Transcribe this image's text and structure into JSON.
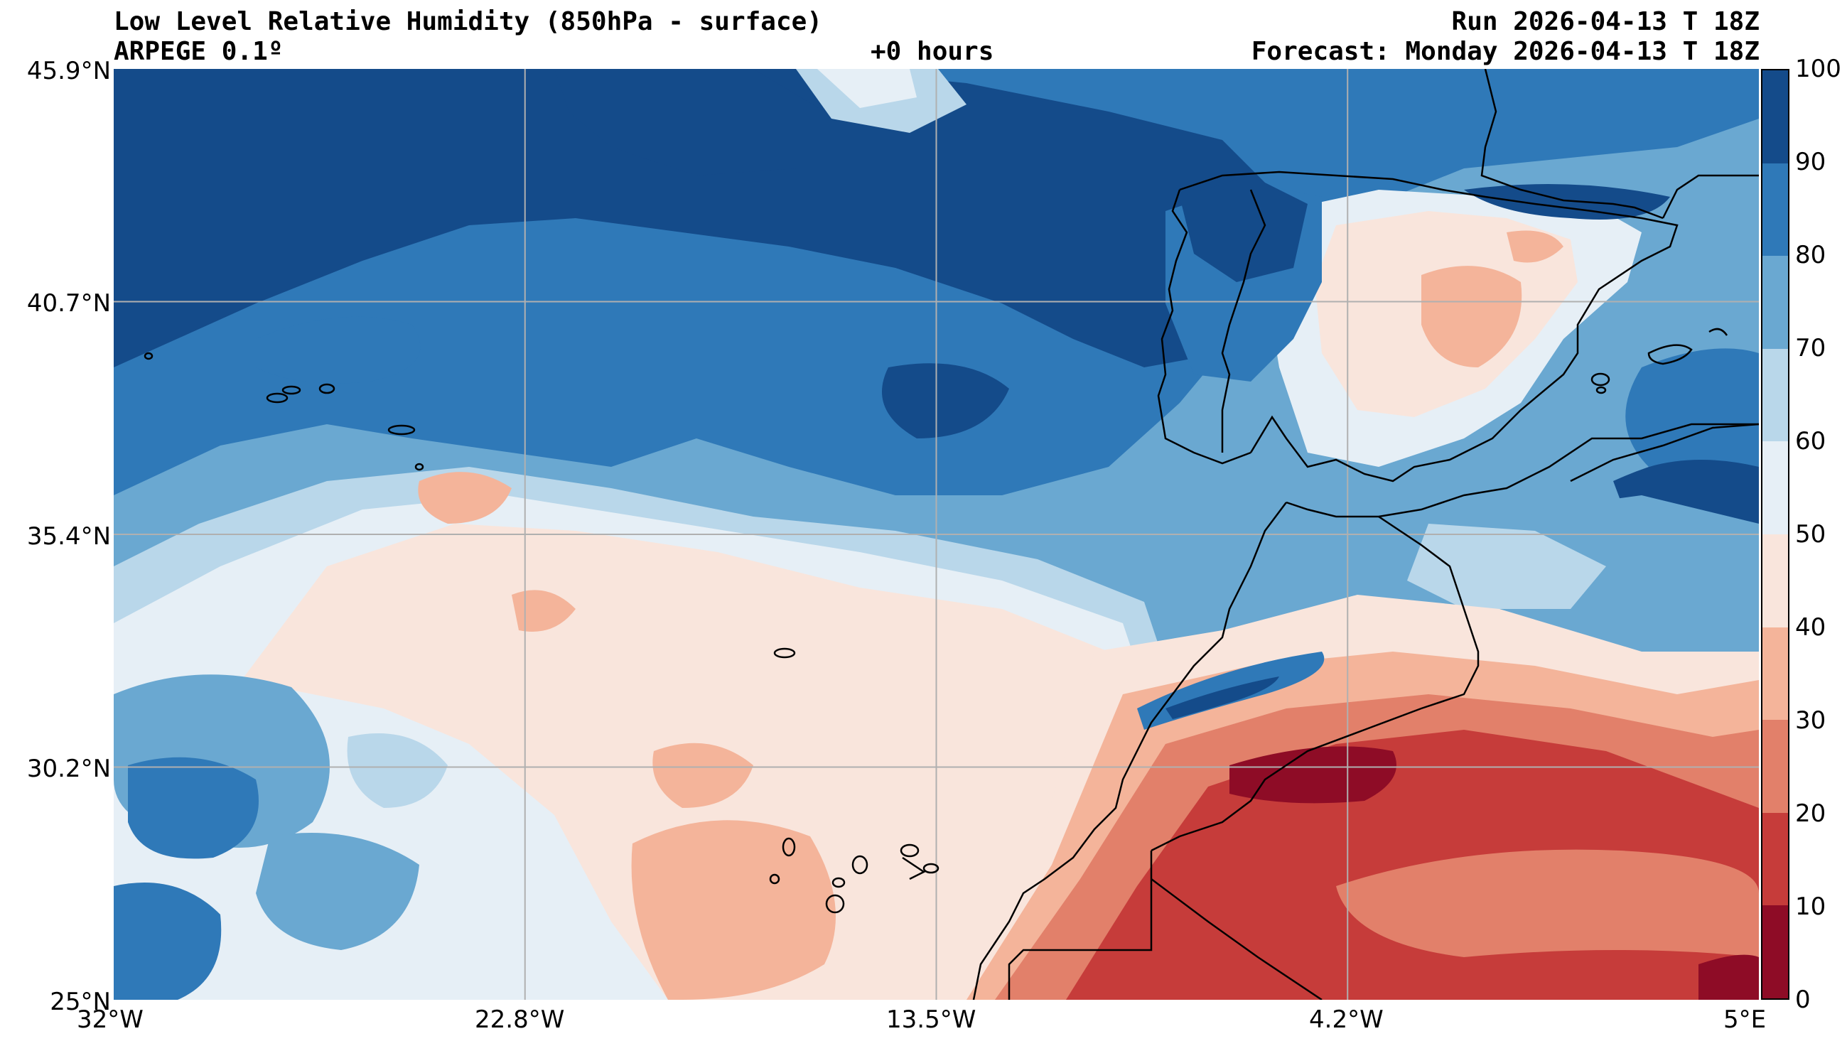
{
  "header": {
    "title": "Low Level Relative Humidity (850hPa - surface)",
    "model": "ARPEGE 0.1º",
    "lead_time": "+0 hours",
    "run": "Run 2026-04-13 T 18Z",
    "forecast": "Forecast: Monday 2026-04-13 T 18Z"
  },
  "axes": {
    "lat_labels": [
      "45.9°N",
      "40.7°N",
      "35.4°N",
      "30.2°N",
      "25°N"
    ],
    "lon_labels": [
      "32°W",
      "22.8°W",
      "13.5°W",
      "4.2°W",
      "5°E"
    ]
  },
  "colorbar": {
    "ticks": [
      "100",
      "90",
      "80",
      "70",
      "60",
      "50",
      "40",
      "30",
      "20",
      "10",
      "0"
    ],
    "colors": [
      "#144b8a",
      "#2f79b8",
      "#6aa8d1",
      "#b9d7ea",
      "#e6eff6",
      "#f9e5dc",
      "#f4b49a",
      "#e2806a",
      "#c63c3a",
      "#8e0c26"
    ]
  },
  "map": {
    "field": "relative-humidity",
    "unit": "%",
    "lat_range": [
      25,
      45.9
    ],
    "lon_range": [
      -32,
      5
    ],
    "gridlines": true,
    "coastline_color": "#000000"
  }
}
